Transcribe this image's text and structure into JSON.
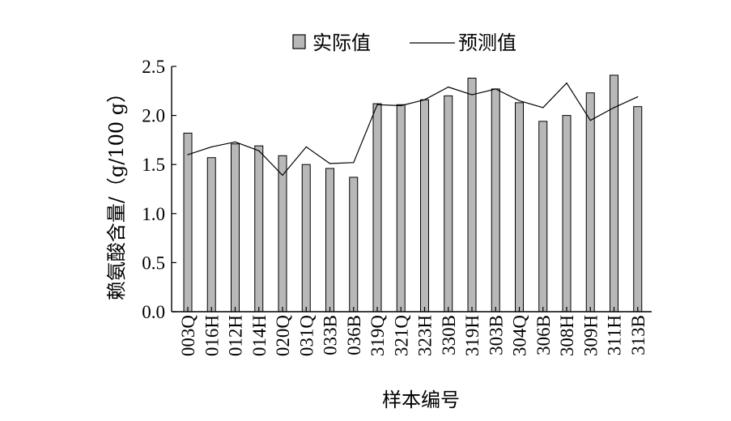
{
  "chart_data": {
    "type": "bar",
    "xlabel": "样本编号",
    "ylabel": "赖氨酸含量/（g/100 g）",
    "ylim": [
      0,
      2.5
    ],
    "yticks": [
      "0.0",
      "0.5",
      "1.0",
      "1.5",
      "2.0",
      "2.5"
    ],
    "grid": false,
    "legend_position": "top-center",
    "categories": [
      "003Q",
      "016H",
      "012H",
      "014H",
      "020Q",
      "031Q",
      "033B",
      "036B",
      "319Q",
      "321Q",
      "323H",
      "330B",
      "319H",
      "303B",
      "304Q",
      "306B",
      "308H",
      "309H",
      "311H",
      "313B"
    ],
    "series": [
      {
        "name": "实际值",
        "kind": "bar",
        "color": "#b8b8b8",
        "values": [
          1.82,
          1.57,
          1.71,
          1.69,
          1.59,
          1.5,
          1.46,
          1.37,
          2.12,
          2.11,
          2.16,
          2.2,
          2.38,
          2.27,
          2.13,
          1.94,
          2.0,
          2.23,
          2.41,
          2.09
        ]
      },
      {
        "name": "预测值",
        "kind": "line",
        "color": "#000000",
        "values": [
          1.6,
          1.68,
          1.73,
          1.64,
          1.39,
          1.68,
          1.51,
          1.52,
          2.11,
          2.1,
          2.16,
          2.29,
          2.21,
          2.27,
          2.15,
          2.08,
          2.33,
          1.95,
          2.08,
          2.19
        ]
      }
    ]
  }
}
